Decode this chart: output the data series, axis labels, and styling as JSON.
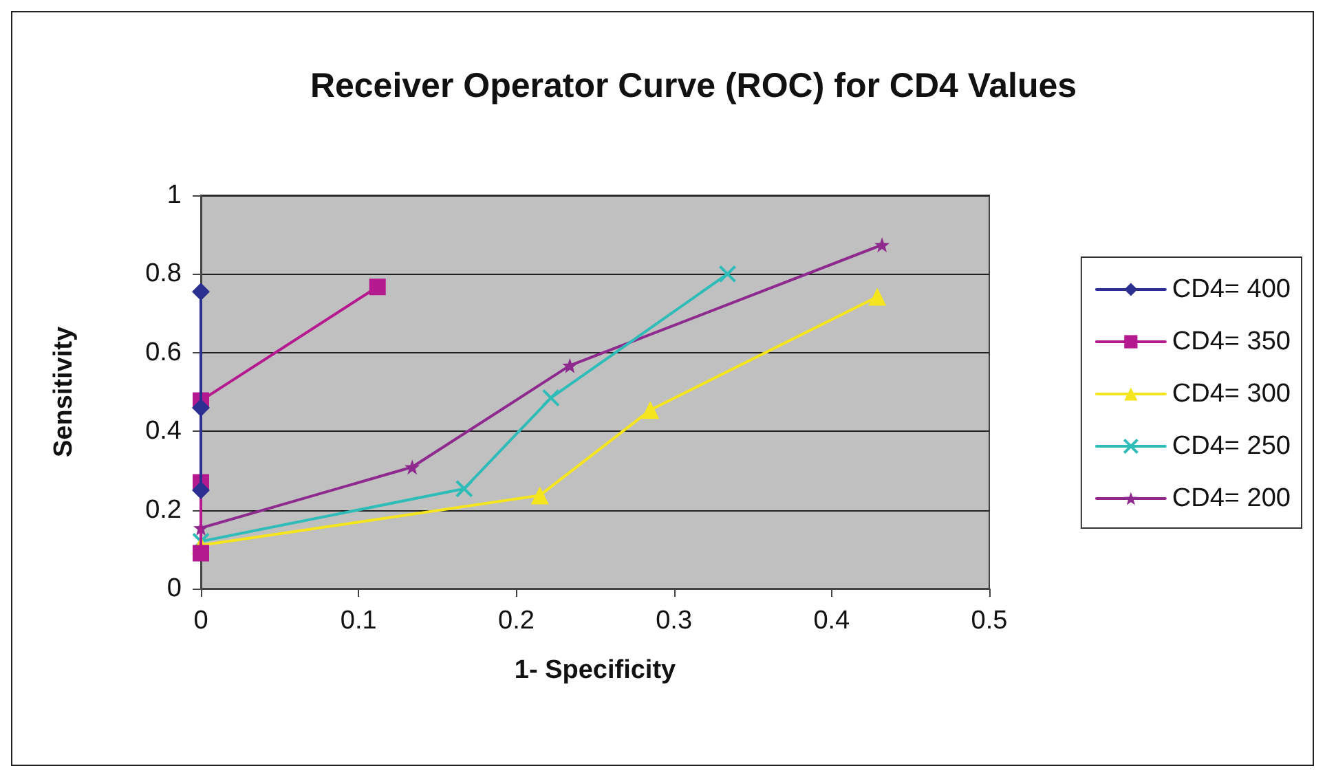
{
  "chart_data": {
    "type": "line",
    "title": "Receiver Operator Curve (ROC) for CD4 Values",
    "xlabel": "1- Specificity",
    "ylabel": "Sensitivity",
    "xlim": [
      0,
      0.5
    ],
    "xticks": [
      0,
      0.1,
      0.2,
      0.3,
      0.4,
      0.5
    ],
    "ylim": [
      0,
      1
    ],
    "yticks": [
      0,
      0.2,
      0.4,
      0.6,
      0.8,
      1
    ],
    "grid": "y",
    "legend": "right",
    "series": [
      {
        "name": "CD4= 400",
        "color": "#2b2f8f",
        "marker": "diamond",
        "x": [
          0,
          0,
          0
        ],
        "values": [
          0.25,
          0.46,
          0.755
        ]
      },
      {
        "name": "CD4= 350",
        "color": "#b5198f",
        "marker": "square",
        "x": [
          0,
          0,
          0,
          0.112
        ],
        "values": [
          0.09,
          0.27,
          0.478,
          0.767
        ]
      },
      {
        "name": "CD4= 300",
        "color": "#f5e51f",
        "marker": "triangle",
        "x": [
          0,
          0.215,
          0.285,
          0.429
        ],
        "values": [
          0.11,
          0.237,
          0.454,
          0.742
        ]
      },
      {
        "name": "CD4= 250",
        "color": "#2ebcb8",
        "marker": "cross",
        "x": [
          0,
          0.167,
          0.222,
          0.334
        ],
        "values": [
          0.12,
          0.254,
          0.485,
          0.8
        ]
      },
      {
        "name": "CD4= 200",
        "color": "#8e2a8e",
        "marker": "star",
        "x": [
          0,
          0.134,
          0.234,
          0.432
        ],
        "values": [
          0.154,
          0.309,
          0.567,
          0.874
        ]
      }
    ]
  }
}
